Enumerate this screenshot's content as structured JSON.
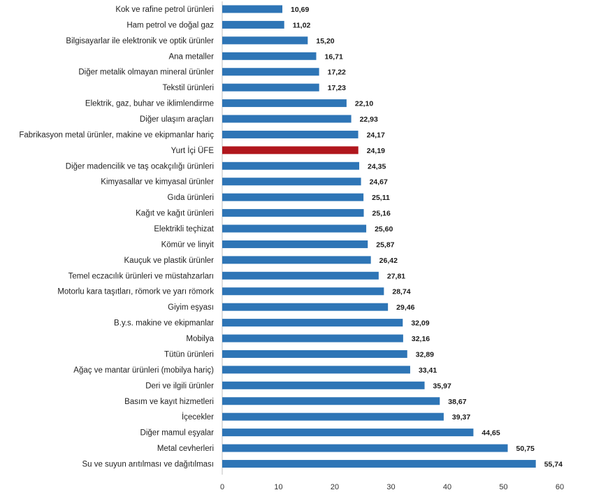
{
  "chart_data": {
    "type": "bar",
    "orientation": "horizontal",
    "title": "",
    "xlabel": "",
    "ylabel": "",
    "categories": [
      "Kok ve rafine petrol ürünleri",
      "Ham petrol ve doğal gaz",
      "Bilgisayarlar ile elektronik ve optik ürünler",
      "Ana metaller",
      "Diğer metalik olmayan mineral ürünler",
      "Tekstil ürünleri",
      "Elektrik, gaz, buhar ve iklimlendirme",
      "Diğer ulaşım araçları",
      "Fabrikasyon metal ürünler, makine ve ekipmanlar hariç",
      "Yurt İçi ÜFE",
      "Diğer madencilik ve taş ocakçılığı ürünleri",
      "Kimyasallar ve kimyasal ürünler",
      "Gıda ürünleri",
      "Kağıt ve kağıt ürünleri",
      "Elektrikli teçhizat",
      "Kömür ve linyit",
      "Kauçuk ve plastik ürünler",
      "Temel eczacılık ürünleri ve müstahzarları",
      "Motorlu kara taşıtları, römork ve yarı römork",
      "Giyim eşyası",
      "B.y.s. makine ve ekipmanlar",
      "Mobilya",
      "Tütün ürünleri",
      "Ağaç ve mantar ürünleri (mobilya hariç)",
      "Deri ve ilgili ürünler",
      "Basım ve kayıt hizmetleri",
      "İçecekler",
      "Diğer mamul eşyalar",
      "Metal cevherleri",
      "Su ve suyun arıtılması ve dağıtılması"
    ],
    "values": [
      10.69,
      11.02,
      15.2,
      16.71,
      17.22,
      17.23,
      22.1,
      22.93,
      24.17,
      24.19,
      24.35,
      24.67,
      25.11,
      25.16,
      25.6,
      25.87,
      26.42,
      27.81,
      28.74,
      29.46,
      32.09,
      32.16,
      32.89,
      33.41,
      35.97,
      38.67,
      39.37,
      44.65,
      50.75,
      55.74
    ],
    "value_labels": [
      "10,69",
      "11,02",
      "15,20",
      "16,71",
      "17,22",
      "17,23",
      "22,10",
      "22,93",
      "24,17",
      "24,19",
      "24,35",
      "24,67",
      "25,11",
      "25,16",
      "25,60",
      "25,87",
      "26,42",
      "27,81",
      "28,74",
      "29,46",
      "32,09",
      "32,16",
      "32,89",
      "33,41",
      "35,97",
      "38,67",
      "39,37",
      "44,65",
      "50,75",
      "55,74"
    ],
    "xlim": [
      0,
      60
    ],
    "x_ticks": [
      "0",
      "10",
      "20",
      "30",
      "40",
      "50",
      "60"
    ],
    "grid": false,
    "legend": "none",
    "bar_color": "#2e75b6",
    "highlight_category": "Yurt İçi ÜFE",
    "highlight_color": "#b0161d",
    "axis_color": "#bfbfbf"
  }
}
